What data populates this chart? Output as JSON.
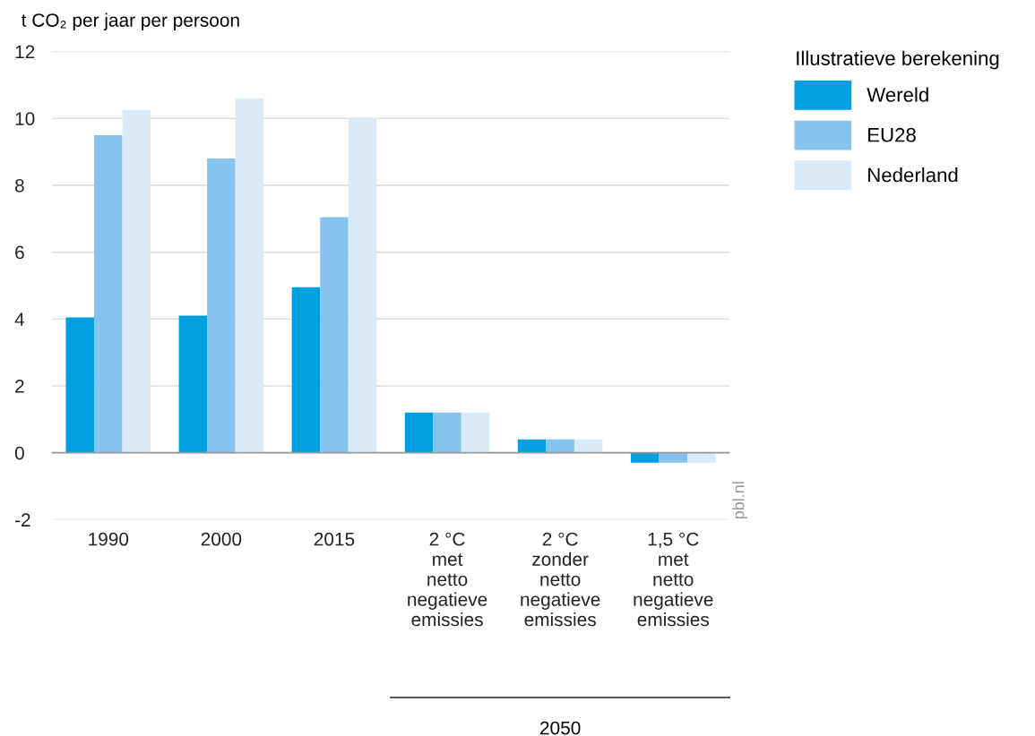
{
  "chart_data": {
    "type": "bar",
    "ylabel": "t CO₂ per jaar per persoon",
    "legend_title": "Illustratieve berekening",
    "categories": [
      "1990",
      "2000",
      "2015",
      "2 °C\nmet\nnetto\nnegatieve\nemissies",
      "2 °C\nzonder\nnetto\nnegatieve\nemissies",
      "1,5 °C\nmet\nnetto\nnegatieve\nemissies"
    ],
    "series": [
      {
        "name": "Wereld",
        "color": "#009fe0",
        "values": [
          4.05,
          4.1,
          4.95,
          1.2,
          0.4,
          -0.3
        ]
      },
      {
        "name": "EU28",
        "color": "#86c4ef",
        "values": [
          9.5,
          8.8,
          7.05,
          1.2,
          0.4,
          -0.3
        ]
      },
      {
        "name": "Nederland",
        "color": "#d9ebf9",
        "values": [
          10.25,
          10.6,
          10.0,
          1.2,
          0.4,
          -0.3
        ]
      }
    ],
    "ylim": [
      -2,
      12
    ],
    "yticks": [
      {
        "value": -2,
        "label": "-2"
      },
      0,
      2,
      4,
      6,
      8,
      10,
      12
    ],
    "grid": "y",
    "legend": "top right",
    "ref_lines": [
      {
        "axis": "y",
        "value": 0,
        "color": "#999999"
      }
    ],
    "annotations": [
      "2050",
      "pbl.nl"
    ]
  }
}
